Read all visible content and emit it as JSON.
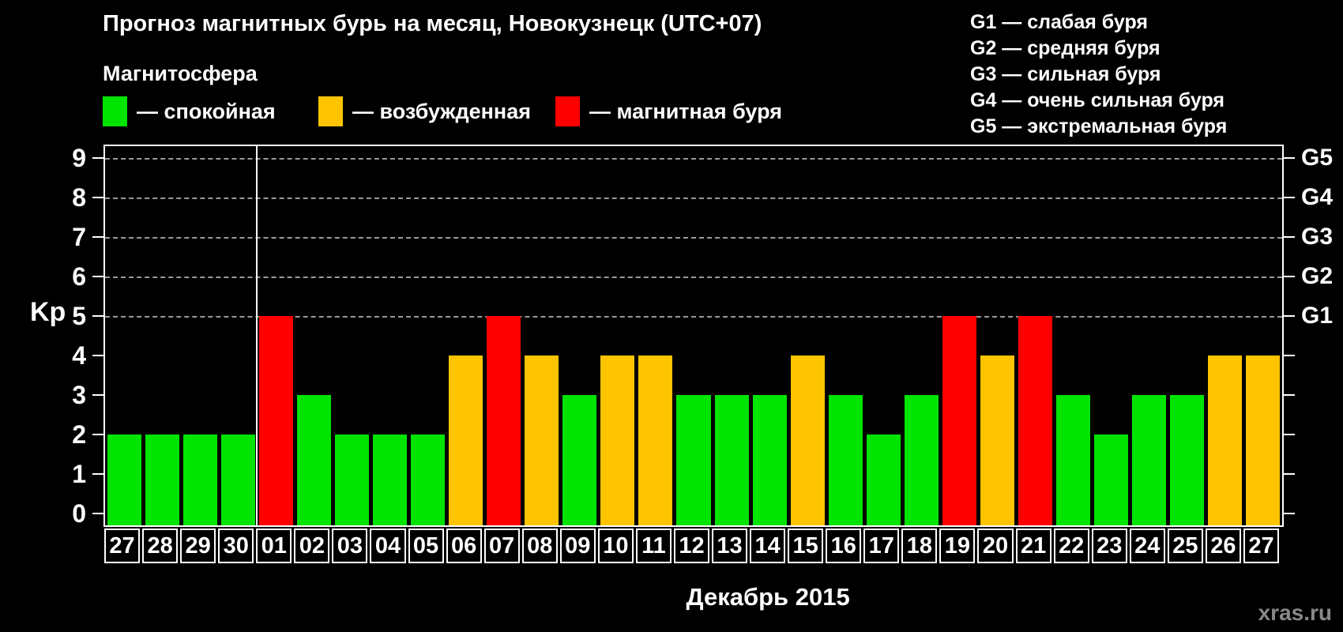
{
  "title": "Прогноз магнитных бурь на месяц, Новокузнецк (UTC+07)",
  "legend": {
    "heading": "Магнитосфера",
    "items": [
      {
        "label": "— спокойная",
        "color": "#00e400"
      },
      {
        "label": "— возбужденная",
        "color": "#ffc400"
      },
      {
        "label": "— магнитная буря",
        "color": "#ff0000"
      }
    ]
  },
  "g_scale_legend": [
    "G1 — слабая буря",
    "G2 — средняя буря",
    "G3 — сильная буря",
    "G4 — очень сильная буря",
    "G5 — экстремальная буря"
  ],
  "watermark": "xras.ru",
  "chart_data": {
    "type": "bar",
    "title": "Прогноз магнитных бурь на месяц, Новокузнецк (UTC+07)",
    "xlabel": "Декабрь 2015",
    "ylabel": "Kp",
    "ylim": [
      0,
      9
    ],
    "grid": "dashed horizontal gridlines at Kp 5,6,7,8,9 only",
    "background": "#000000",
    "categories": [
      "27",
      "28",
      "29",
      "30",
      "01",
      "02",
      "03",
      "04",
      "05",
      "06",
      "07",
      "08",
      "09",
      "10",
      "11",
      "12",
      "13",
      "14",
      "15",
      "16",
      "17",
      "18",
      "19",
      "20",
      "21",
      "22",
      "23",
      "24",
      "25",
      "26",
      "27"
    ],
    "values": [
      2,
      2,
      2,
      2,
      5,
      3,
      2,
      2,
      2,
      4,
      5,
      4,
      3,
      4,
      4,
      3,
      3,
      3,
      4,
      3,
      2,
      3,
      5,
      4,
      5,
      3,
      2,
      3,
      3,
      4,
      4
    ],
    "month_boundary_after_index": 3,
    "left_ticks": [
      0,
      1,
      2,
      3,
      4,
      5,
      6,
      7,
      8,
      9
    ],
    "right_axis": [
      {
        "kp": 5,
        "label": "G1"
      },
      {
        "kp": 6,
        "label": "G2"
      },
      {
        "kp": 7,
        "label": "G3"
      },
      {
        "kp": 8,
        "label": "G4"
      },
      {
        "kp": 9,
        "label": "G5"
      }
    ],
    "color_rules": {
      "quiet": {
        "max_kp": 3,
        "color": "#00e400"
      },
      "active": {
        "kp": 4,
        "color": "#ffc400"
      },
      "storm": {
        "min_kp": 5,
        "color": "#ff0000"
      }
    }
  }
}
